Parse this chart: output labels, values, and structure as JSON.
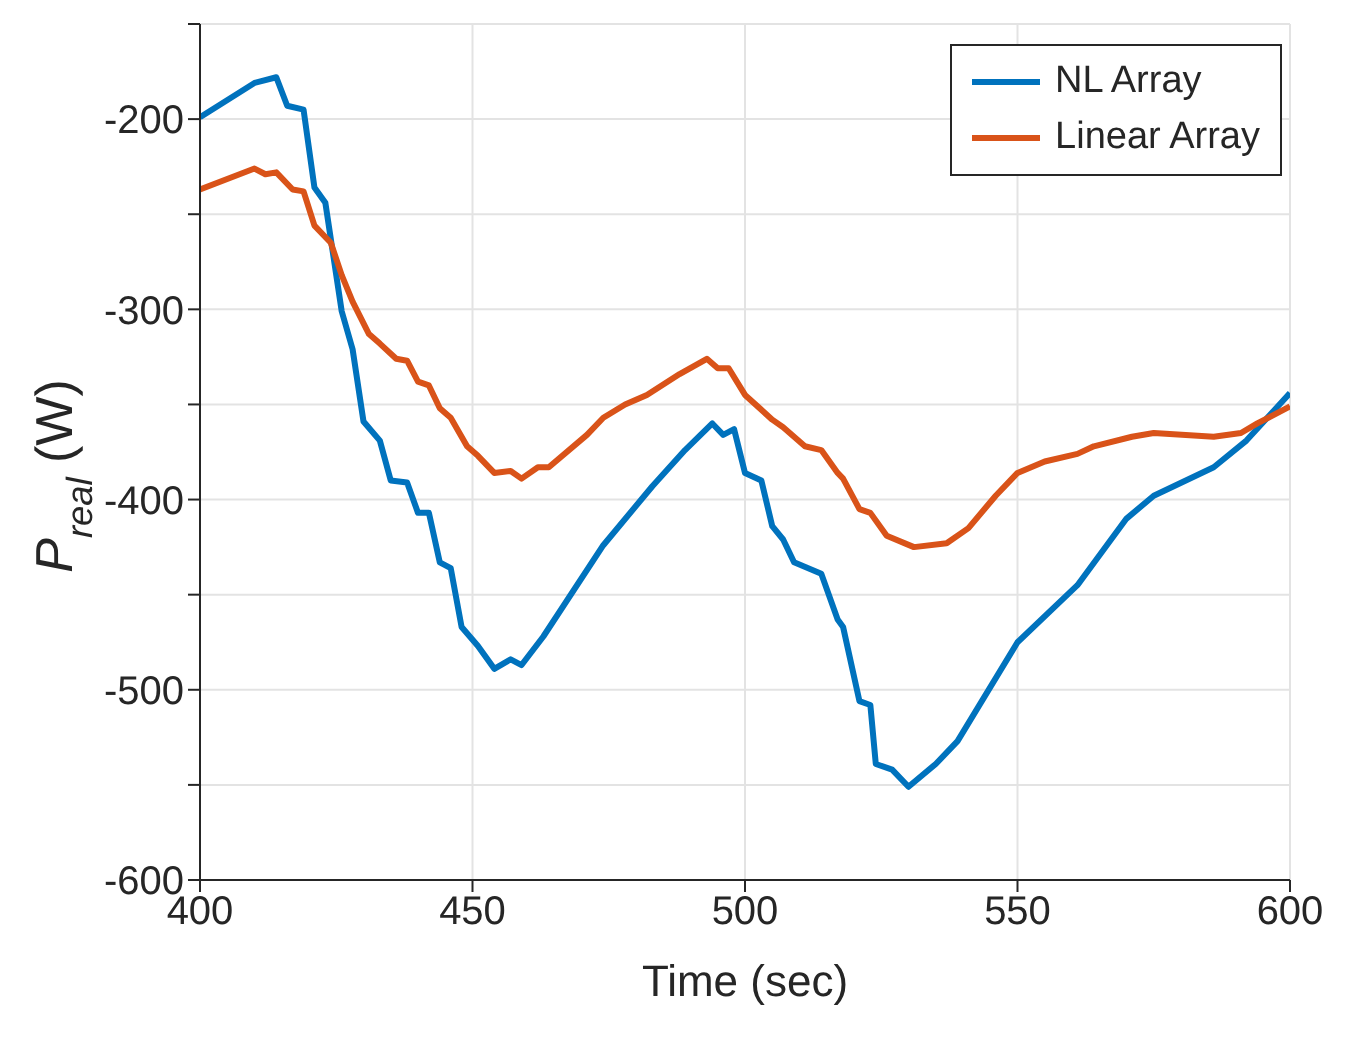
{
  "chart_data": {
    "type": "line",
    "xlabel": "Time (sec)",
    "ylabel": "P$_{real}$ (W)",
    "xlim": [
      400,
      600
    ],
    "xticks": [
      400,
      450,
      500,
      550,
      600
    ],
    "ylim": [
      -600,
      -150
    ],
    "yticks": [
      -600,
      {
        "value": -550,
        "label": null
      },
      -500,
      {
        "value": -450,
        "label": null
      },
      -400,
      {
        "value": -350,
        "label": null
      },
      -300,
      {
        "value": -250,
        "label": null
      },
      -200,
      {
        "value": -150,
        "label": null
      }
    ],
    "grid": true,
    "legend": "top right",
    "marker": "none",
    "line_style": "solid",
    "series": [
      {
        "name": "NL Array",
        "color": "#0072bd",
        "x": [
          400,
          410,
          414,
          416,
          419,
          421,
          423,
          426,
          428,
          430,
          433,
          435,
          438,
          440,
          442,
          444,
          446,
          448,
          451,
          454,
          457,
          459,
          463,
          474,
          483,
          489,
          494,
          496,
          498,
          500,
          503,
          505,
          507,
          509,
          514,
          517,
          518,
          521,
          523,
          524,
          527,
          530,
          535,
          539,
          550,
          561,
          570,
          575,
          586,
          592,
          600
        ],
        "values": [
          -199,
          -181,
          -178,
          -193,
          -195,
          -236,
          -244,
          -301,
          -321,
          -359,
          -369,
          -390,
          -391,
          -407,
          -407,
          -433,
          -436,
          -467,
          -477,
          -489,
          -484,
          -487,
          -472,
          -424,
          -393,
          -374,
          -360,
          -366,
          -363,
          -386,
          -390,
          -414,
          -421,
          -433,
          -439,
          -463,
          -467,
          -506,
          -508,
          -539,
          -542,
          -551,
          -539,
          -527,
          -475,
          -445,
          -410,
          -398,
          -383,
          -369,
          -344
        ]
      },
      {
        "name": "Linear Array",
        "color": "#d95319",
        "x": [
          400,
          410,
          412,
          414,
          417,
          419,
          421,
          424,
          426,
          428,
          431,
          433,
          436,
          438,
          440,
          442,
          444,
          446,
          449,
          451,
          454,
          457,
          459,
          462,
          464,
          471,
          474,
          478,
          482,
          488,
          493,
          495,
          497,
          500,
          505,
          507,
          511,
          514,
          517,
          518,
          521,
          523,
          526,
          531,
          537,
          541,
          546,
          550,
          555,
          561,
          564,
          571,
          575,
          586,
          591,
          594,
          600
        ],
        "values": [
          -237,
          -226,
          -229,
          -228,
          -237,
          -238,
          -256,
          -265,
          -282,
          -296,
          -313,
          -318,
          -326,
          -327,
          -338,
          -340,
          -352,
          -357,
          -372,
          -377,
          -386,
          -385,
          -389,
          -383,
          -383,
          -366,
          -357,
          -350,
          -345,
          -334,
          -326,
          -331,
          -331,
          -345,
          -358,
          -362,
          -372,
          -374,
          -386,
          -389,
          -405,
          -407,
          -419,
          -425,
          -423,
          -415,
          -398,
          -386,
          -380,
          -376,
          -372,
          -367,
          -365,
          -367,
          -365,
          -360,
          -351
        ]
      }
    ]
  }
}
